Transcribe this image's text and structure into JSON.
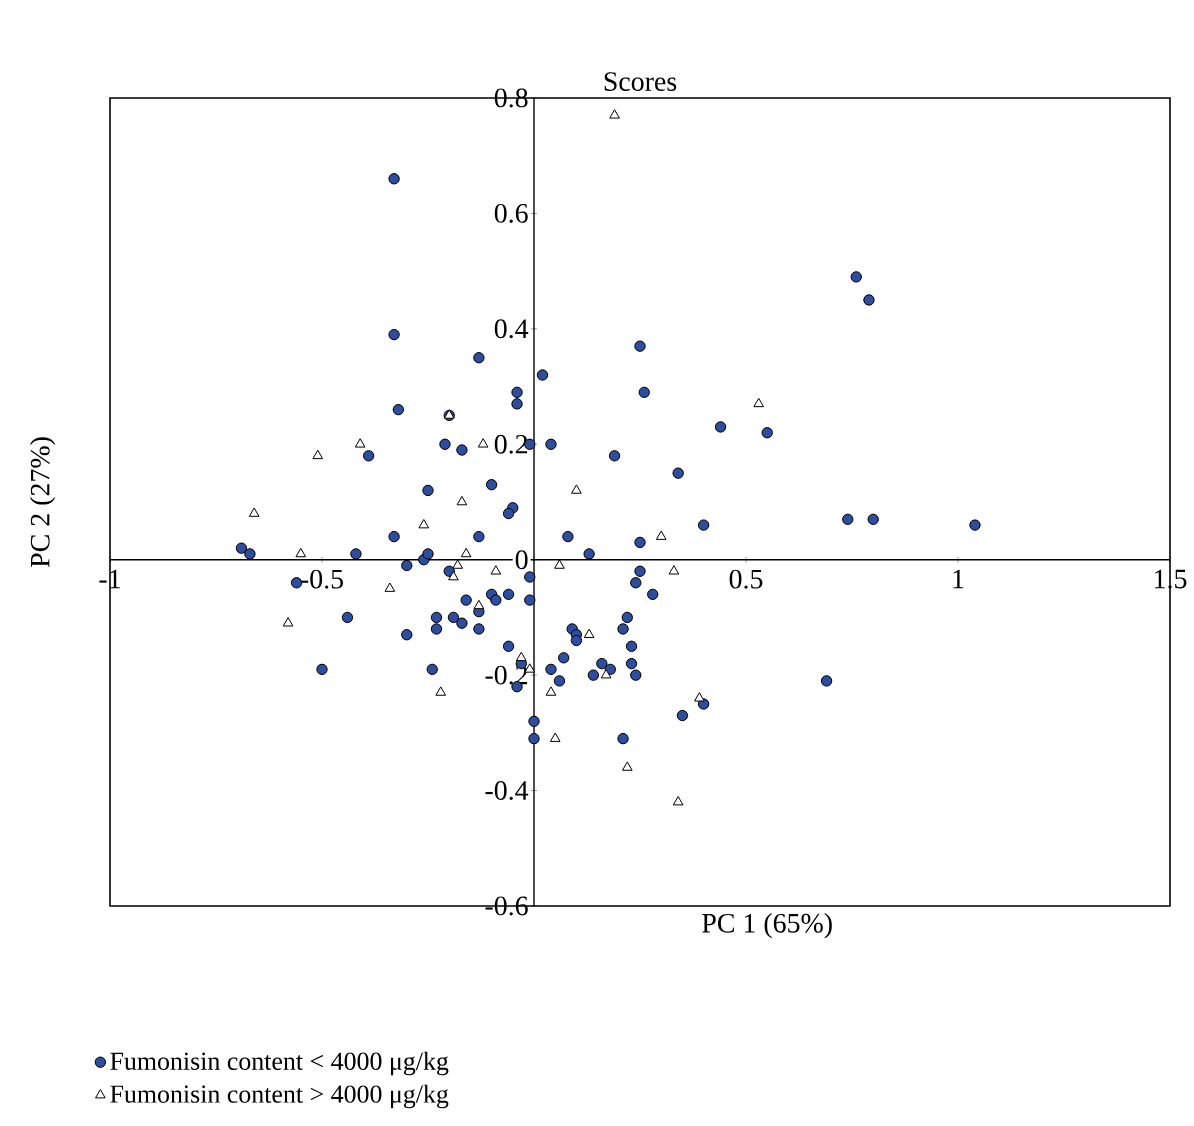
{
  "chart_data": {
    "type": "scatter",
    "title": "Scores",
    "xlabel": "PC 1 (65%)",
    "ylabel": "PC 2 (27%)",
    "xlim": [
      -1,
      1.5
    ],
    "ylim": [
      -0.6,
      0.8
    ],
    "xticks": [
      -1,
      -0.5,
      {
        "value": 0,
        "label": null
      },
      0.5,
      1,
      1.5
    ],
    "yticks": [
      -0.6,
      -0.4,
      -0.2,
      0,
      0.2,
      0.4,
      0.6,
      0.8
    ],
    "legend": "bottom",
    "series": [
      {
        "name": "Fumonisin content < 4000 μg/kg",
        "color": "#2e4d9e",
        "marker": "circle",
        "x": [
          -0.33,
          -0.33,
          -0.13,
          -0.32,
          -0.04,
          -0.04,
          -0.2,
          -0.21,
          -0.17,
          -0.39,
          -0.01,
          -0.25,
          -0.1,
          -0.05,
          -0.06,
          -0.33,
          -0.13,
          -0.69,
          -0.67,
          -0.42,
          -0.26,
          -0.25,
          0.76,
          0.79,
          0.25,
          0.02,
          0.26,
          0.44,
          0.55,
          0.04,
          0.19,
          0.34,
          0.74,
          0.8,
          1.04,
          0.08,
          0.13,
          0.25,
          0.4,
          -0.56,
          -0.44,
          -0.5,
          -0.3,
          -0.23,
          -0.23,
          -0.3,
          -0.19,
          -0.17,
          -0.16,
          -0.13,
          -0.1,
          -0.09,
          -0.06,
          -0.01,
          -0.01,
          -0.06,
          -0.03,
          -0.04,
          -0.24,
          0.0,
          0.0,
          -0.2,
          -0.13,
          0.25,
          0.24,
          0.28,
          0.22,
          0.21,
          0.09,
          0.1,
          0.1,
          0.23,
          0.07,
          0.23,
          0.16,
          0.18,
          0.04,
          0.14,
          0.24,
          0.06,
          0.69,
          0.4,
          0.35,
          0.21
        ],
        "values": [
          0.66,
          0.39,
          0.35,
          0.26,
          0.29,
          0.27,
          0.25,
          0.2,
          0.19,
          0.18,
          0.2,
          0.12,
          0.13,
          0.09,
          0.08,
          0.04,
          0.04,
          0.02,
          0.01,
          0.01,
          0.0,
          0.01,
          0.49,
          0.45,
          0.37,
          0.32,
          0.29,
          0.23,
          0.22,
          0.2,
          0.18,
          0.15,
          0.07,
          0.07,
          0.06,
          0.04,
          0.01,
          0.03,
          0.06,
          -0.04,
          -0.1,
          -0.19,
          -0.01,
          -0.1,
          -0.12,
          -0.13,
          -0.1,
          -0.11,
          -0.07,
          -0.12,
          -0.06,
          -0.07,
          -0.06,
          -0.03,
          -0.07,
          -0.15,
          -0.18,
          -0.22,
          -0.19,
          -0.28,
          -0.31,
          -0.02,
          -0.09,
          -0.02,
          -0.04,
          -0.06,
          -0.1,
          -0.12,
          -0.12,
          -0.13,
          -0.14,
          -0.15,
          -0.17,
          -0.18,
          -0.18,
          -0.19,
          -0.19,
          -0.2,
          -0.2,
          -0.21,
          -0.21,
          -0.25,
          -0.27,
          -0.31
        ]
      },
      {
        "name": "Fumonisin content > 4000 μg/kg",
        "color": "#ffffff",
        "marker": "triangle",
        "x": [
          -0.66,
          -0.51,
          -0.41,
          -0.2,
          -0.12,
          -0.17,
          -0.26,
          -0.55,
          -0.16,
          0.19,
          0.53,
          0.1,
          0.3,
          -0.58,
          -0.34,
          -0.22,
          -0.19,
          -0.18,
          -0.09,
          -0.03,
          -0.01,
          -0.13,
          0.06,
          0.33,
          0.13,
          0.17,
          0.04,
          0.39,
          0.05,
          0.22,
          0.34
        ],
        "values": [
          0.08,
          0.18,
          0.2,
          0.25,
          0.2,
          0.1,
          0.06,
          0.01,
          0.01,
          0.77,
          0.27,
          0.12,
          0.04,
          -0.11,
          -0.05,
          -0.23,
          -0.03,
          -0.01,
          -0.02,
          -0.17,
          -0.19,
          -0.08,
          -0.01,
          -0.02,
          -0.13,
          -0.2,
          -0.23,
          -0.24,
          -0.31,
          -0.36,
          -0.42
        ]
      }
    ]
  }
}
